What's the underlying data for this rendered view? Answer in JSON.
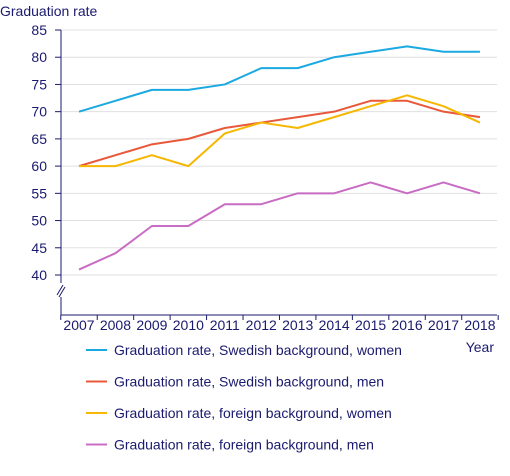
{
  "chart_data": {
    "type": "line",
    "ylabel": "Graduation rate",
    "xlabel": "Year",
    "ylim": [
      40,
      85
    ],
    "y_axis_break": true,
    "grid": "horizontal",
    "yticks": [
      40,
      45,
      50,
      55,
      60,
      65,
      70,
      75,
      80,
      85
    ],
    "x": [
      "2007",
      "2008",
      "2009",
      "2010",
      "2011",
      "2012",
      "2013",
      "2014",
      "2015",
      "2016",
      "2017",
      "2018"
    ],
    "legend_position": "bottom",
    "series": [
      {
        "name": "Graduation rate, Swedish background, women",
        "color": "#1ba9e1",
        "values": [
          70,
          72,
          74,
          74,
          75,
          78,
          78,
          80,
          81,
          82,
          81,
          81
        ]
      },
      {
        "name": "Graduation rate, Swedish background, men",
        "color": "#e8583a",
        "values": [
          60,
          62,
          64,
          65,
          67,
          68,
          69,
          70,
          72,
          72,
          70,
          69
        ]
      },
      {
        "name": "Graduation rate, foreign background, women",
        "color": "#f5b700",
        "values": [
          60,
          60,
          62,
          60,
          66,
          68,
          67,
          69,
          71,
          73,
          71,
          68
        ]
      },
      {
        "name": "Graduation rate, foreign background, men",
        "color": "#c86cc4",
        "values": [
          41,
          44,
          49,
          49,
          53,
          53,
          55,
          55,
          57,
          55,
          57,
          55
        ]
      }
    ]
  }
}
